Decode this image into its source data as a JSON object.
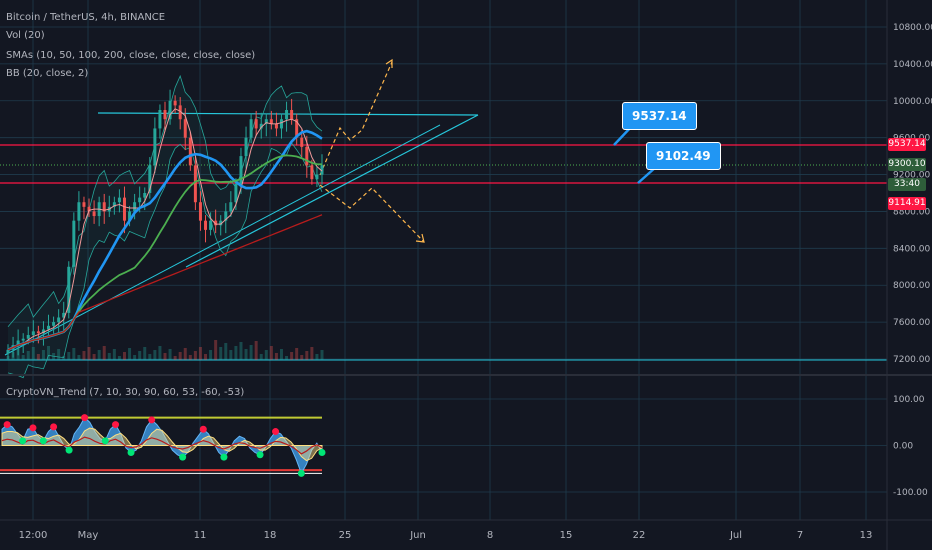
{
  "legend": {
    "symbol": "Bitcoin / TetherUS, 4h, BINANCE",
    "vol": "Vol (20)",
    "smas": "SMAs (10, 50, 100, 200, close, close, close, close)",
    "bb": "BB (20, close, 2)",
    "indicator": "CryptoVN_Trend (7, 10, 30, 90, 60, 53, -60, -53)"
  },
  "price_tags": {
    "resistance": "9537.14",
    "last": "9300.10",
    "countdown": "33:40",
    "support": "9114.91"
  },
  "callouts": {
    "upper": "9537.14",
    "lower": "9102.49"
  },
  "colors": {
    "background": "#131722",
    "grid": "#1f3b4d",
    "horizontal_level": "#ff1744",
    "trendline": "#26c6da",
    "sma_blue": "#2196f3",
    "sma_green": "#4caf50",
    "sma_red": "#b71c1c",
    "bollinger": "#26a69a",
    "projection": "#ffb74d",
    "callout": "#2196f3"
  },
  "chart_data": {
    "type": "line",
    "title": "Bitcoin / TetherUS, 4h, BINANCE",
    "price_axis": {
      "ticks": [
        "10800.00",
        "10400.00",
        "10000.00",
        "9600.00",
        "9200.00",
        "8800.00",
        "8400.00",
        "8000.00",
        "7600.00",
        "7200.00"
      ],
      "ylim": [
        7100,
        11000
      ]
    },
    "oscillator_axis": {
      "ticks": [
        "100.00",
        "0.00",
        "-100.00"
      ],
      "ylim": [
        -140,
        140
      ]
    },
    "time_axis": {
      "ticks": [
        "12:00",
        "May",
        "11",
        "18",
        "25",
        "Jun",
        "8",
        "15",
        "22",
        "Jul",
        "7",
        "13"
      ]
    },
    "horizontal_levels": [
      9537.14,
      9114.91
    ],
    "last_price": 9300.1,
    "close_series": [
      7300,
      7350,
      7400,
      7420,
      7460,
      7500,
      7480,
      7520,
      7560,
      7600,
      7650,
      7700,
      8200,
      8700,
      8900,
      8850,
      8800,
      8750,
      8900,
      8800,
      8850,
      8900,
      8950,
      8700,
      8800,
      8900,
      8950,
      9000,
      9300,
      9700,
      9900,
      9800,
      10000,
      9950,
      9800,
      9600,
      9300,
      8900,
      8700,
      8600,
      8700,
      8650,
      8700,
      8800,
      8900,
      9100,
      9400,
      9600,
      9800,
      9700,
      9750,
      9800,
      9750,
      9700,
      9800,
      9900,
      9800,
      9600,
      9500,
      9300,
      9150,
      9200,
      9300
    ],
    "oscillator_series": [
      35,
      45,
      40,
      25,
      10,
      35,
      38,
      20,
      10,
      30,
      40,
      20,
      0,
      -10,
      25,
      40,
      60,
      50,
      30,
      15,
      10,
      35,
      45,
      25,
      -5,
      -15,
      -10,
      10,
      40,
      55,
      45,
      30,
      10,
      -10,
      -20,
      -25,
      -15,
      5,
      20,
      35,
      25,
      5,
      -15,
      -25,
      -10,
      10,
      20,
      15,
      -5,
      -15,
      -20,
      -5,
      15,
      30,
      25,
      10,
      -5,
      -30,
      -60,
      -40,
      -10,
      5,
      -15
    ]
  }
}
